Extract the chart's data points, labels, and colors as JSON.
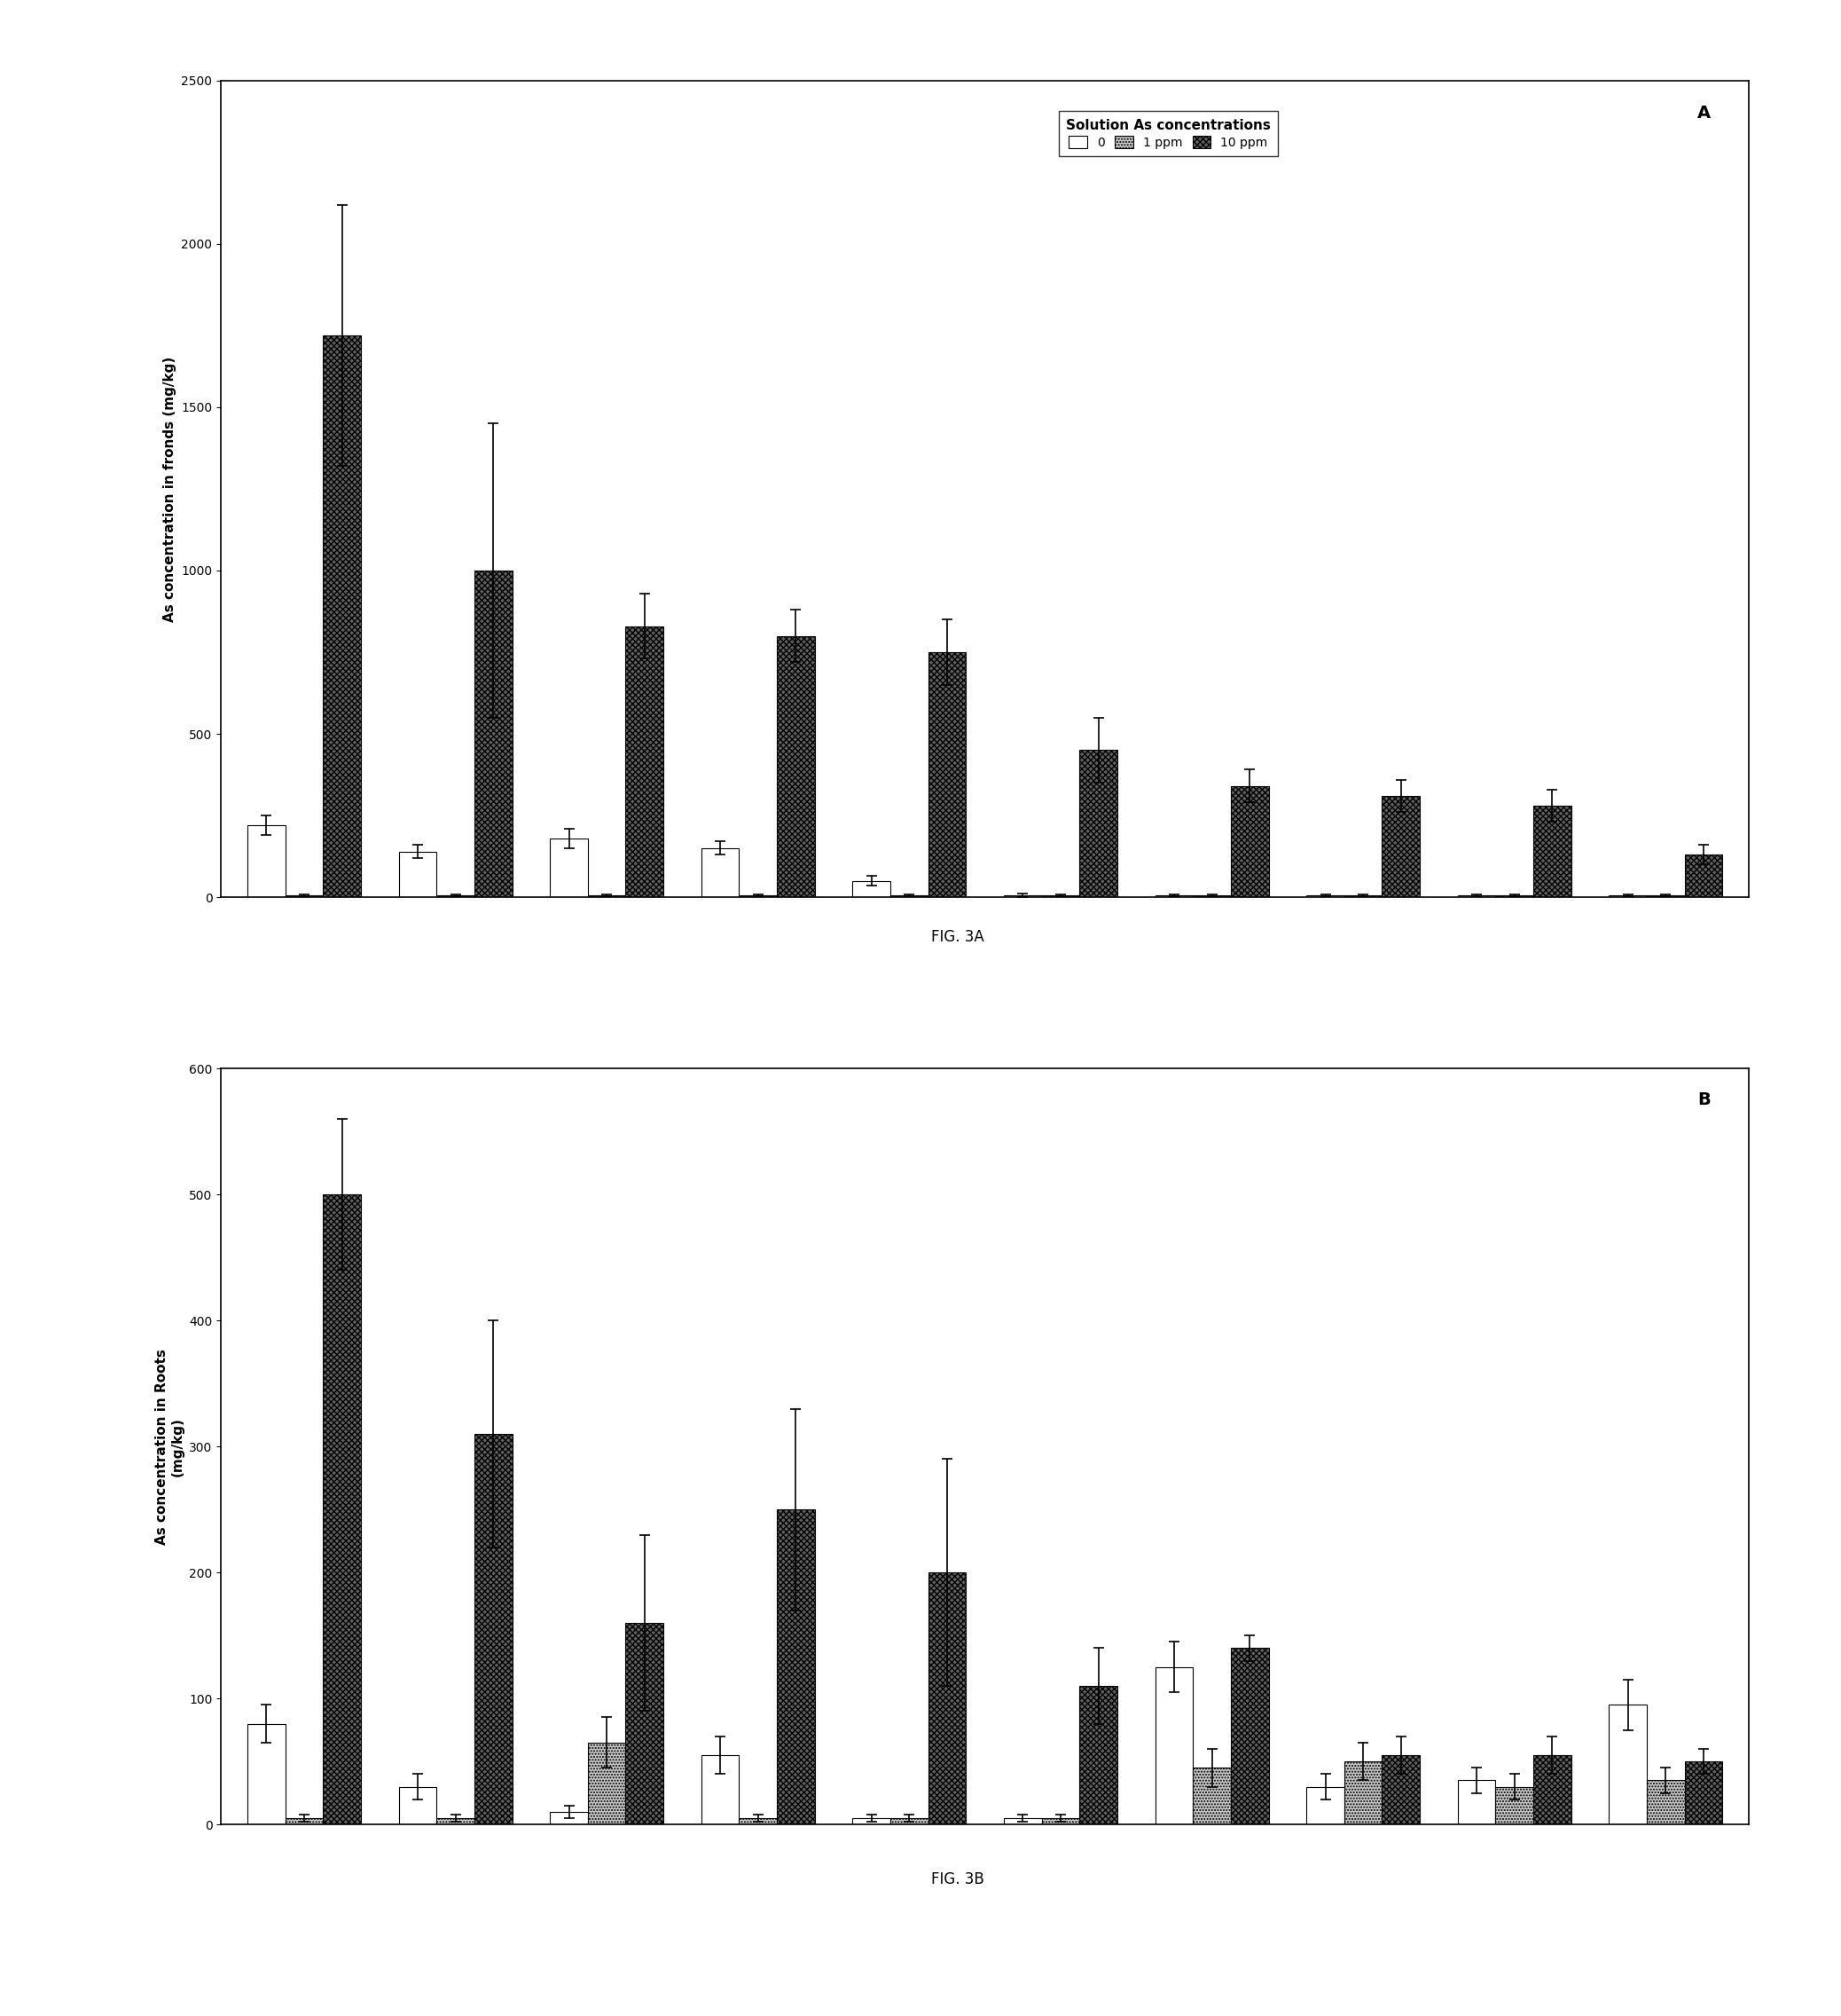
{
  "fig_width": 20.76,
  "fig_height": 22.72,
  "panel_A": {
    "title": "Solution As concentrations",
    "panel_label": "A",
    "ylabel": "As concentration in fronds (mg/kg)",
    "ylim": [
      0,
      2500
    ],
    "yticks": [
      0,
      500,
      1000,
      1500,
      2000,
      2500
    ],
    "values_0ppm": [
      220,
      140,
      180,
      150,
      50,
      5,
      5,
      5,
      5,
      5
    ],
    "errors_0ppm": [
      30,
      20,
      30,
      20,
      15,
      5,
      3,
      3,
      3,
      3
    ],
    "values_1ppm": [
      5,
      5,
      5,
      5,
      5,
      5,
      5,
      5,
      5,
      5
    ],
    "errors_1ppm": [
      3,
      3,
      3,
      3,
      3,
      3,
      3,
      3,
      3,
      3
    ],
    "values_10ppm": [
      1720,
      1000,
      830,
      800,
      750,
      450,
      340,
      310,
      280,
      130
    ],
    "errors_10ppm": [
      400,
      450,
      100,
      80,
      100,
      100,
      50,
      50,
      50,
      30
    ]
  },
  "panel_B": {
    "panel_label": "B",
    "ylabel": "As concentration in Roots\n(mg/kg)",
    "ylim": [
      0,
      600
    ],
    "yticks": [
      0,
      100,
      200,
      300,
      400,
      500,
      600
    ],
    "values_0ppm": [
      80,
      30,
      10,
      55,
      5,
      5,
      125,
      30,
      35,
      95
    ],
    "errors_0ppm": [
      15,
      10,
      5,
      15,
      3,
      3,
      20,
      10,
      10,
      20
    ],
    "values_1ppm": [
      5,
      5,
      65,
      5,
      5,
      5,
      45,
      50,
      30,
      35
    ],
    "errors_1ppm": [
      3,
      3,
      20,
      3,
      3,
      3,
      15,
      15,
      10,
      10
    ],
    "values_10ppm": [
      500,
      310,
      160,
      250,
      200,
      110,
      140,
      55,
      55,
      50
    ],
    "errors_10ppm": [
      60,
      90,
      70,
      80,
      90,
      30,
      10,
      15,
      15,
      10
    ]
  },
  "legend_title": "Solution As concentrations",
  "legend_labels": [
    "0",
    "1 ppm",
    "10 ppm"
  ],
  "color_0ppm": "#ffffff",
  "color_1ppm": "#c8c8c8",
  "color_10ppm": "#606060",
  "hatch_0ppm": "",
  "hatch_1ppm": ".....",
  "hatch_10ppm": "xxxxx",
  "edgecolor": "#000000",
  "figcaption_A": "FIG. 3A",
  "figcaption_B": "FIG. 3B",
  "bar_width": 0.25
}
